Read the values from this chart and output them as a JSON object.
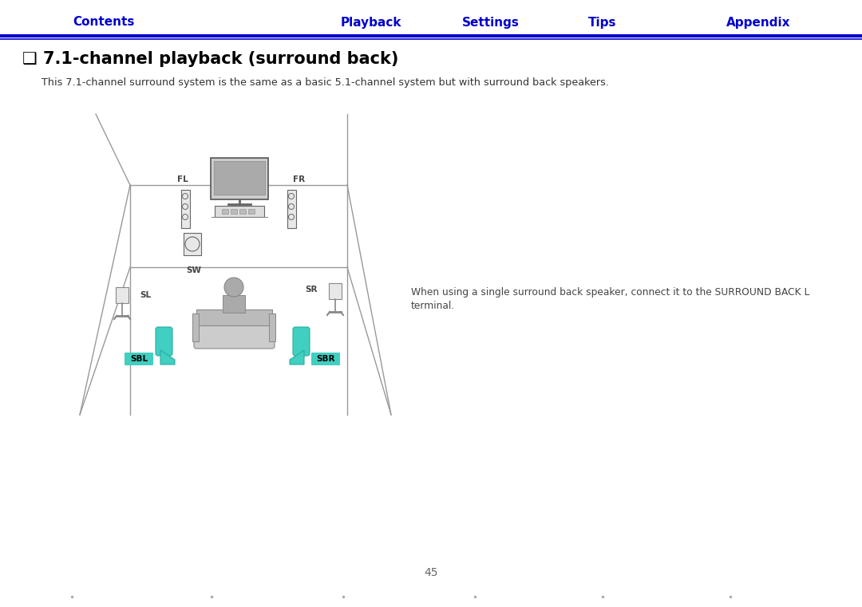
{
  "title_nav": [
    "Contents",
    "Playback",
    "Settings",
    "Tips",
    "Appendix"
  ],
  "title_nav_x": [
    130,
    465,
    615,
    755,
    950
  ],
  "nav_color": "#0000CC",
  "nav_line_color": "#0000CC",
  "heading": "❑ 7.1-channel playback (surround back)",
  "heading_color": "#000000",
  "subtext": "This 7.1-channel surround system is the same as a basic 5.1-channel system but with surround back speakers.",
  "note_line1": "When using a single surround back speaker, connect it to the SURROUND BACK L",
  "note_line2": "terminal.",
  "page_number": "45",
  "bg_color": "#ffffff",
  "speaker_teal": "#40CFC0",
  "room_line_color": "#999999",
  "text_dark": "#333333"
}
